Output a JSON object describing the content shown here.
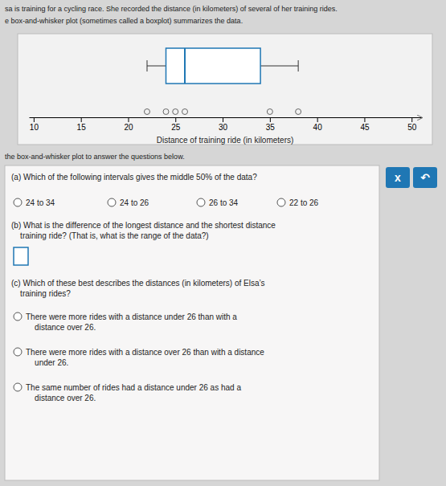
{
  "chart_data": {
    "type": "box",
    "title": [
      "sa is training for a cycling race. She recorded the distance (in kilometers) of several of her training rides.",
      "e box-and-whisker plot (sometimes called a boxplot) summarizes the data."
    ],
    "subtitle": "the box-and-whisker plot to answer the questions below.",
    "xlabel": "Distance of training ride (in kilometers)",
    "min": 22,
    "q1": 24,
    "median": 26,
    "q3": 34,
    "max": 38,
    "points": [
      22,
      24,
      25,
      26,
      35,
      38
    ],
    "xlim": [
      9.5,
      51
    ],
    "xticks": [
      10,
      15,
      20,
      25,
      30,
      35,
      40,
      45,
      50
    ],
    "questions": [
      {
        "label": "(a) Which of the following intervals gives the middle 50% of the data?",
        "options": [
          "24 to 34",
          "24 to 26",
          "26 to 34",
          "22 to 26"
        ]
      },
      {
        "label": "(b) What is the difference of the longest distance and the shortest distance\n    training ride? (That is, what is the range of the data?)"
      },
      {
        "label": "(c) Which of these best describes the distances (in kilometers) of Elsa’s\n    training rides?",
        "options": [
          "There were more rides with a distance under 26 than with a\n    distance over 26.",
          "There were more rides with a distance over 26 than with a distance\n    under 26.",
          "The same number of rides had a distance under 26 as had a\n    distance over 26."
        ]
      }
    ],
    "buttons": [
      "x",
      "↶"
    ]
  }
}
